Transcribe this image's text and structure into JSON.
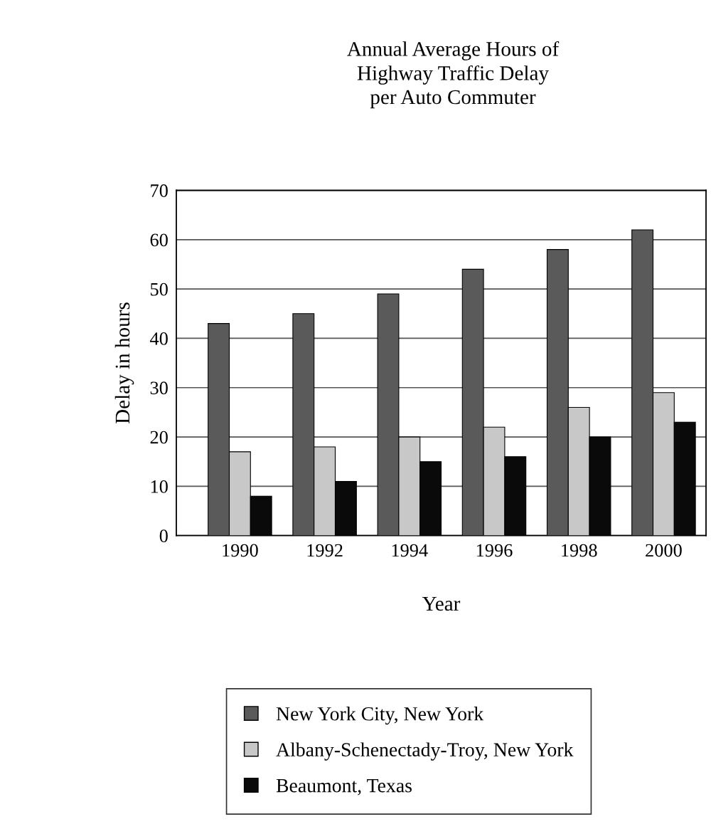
{
  "chart_data": {
    "type": "bar",
    "title": "Annual Average Hours of\nHighway Traffic Delay\nper Auto Commuter",
    "xlabel": "Year",
    "ylabel": "Delay in hours",
    "categories": [
      "1990",
      "1992",
      "1994",
      "1996",
      "1998",
      "2000"
    ],
    "series": [
      {
        "name": "New York City, New York",
        "color": "#5a5a5a",
        "values": [
          43,
          45,
          49,
          54,
          58,
          62
        ]
      },
      {
        "name": "Albany-Schenectady-Troy, New York",
        "color": "#c8c8c8",
        "values": [
          17,
          18,
          20,
          22,
          26,
          29
        ]
      },
      {
        "name": "Beaumont, Texas",
        "color": "#0a0a0a",
        "values": [
          8,
          11,
          15,
          16,
          20,
          23
        ]
      }
    ],
    "ylim": [
      0,
      70
    ],
    "yticks": [
      0,
      10,
      20,
      30,
      40,
      50,
      60,
      70
    ],
    "grid": "y",
    "legend": "bottom"
  }
}
